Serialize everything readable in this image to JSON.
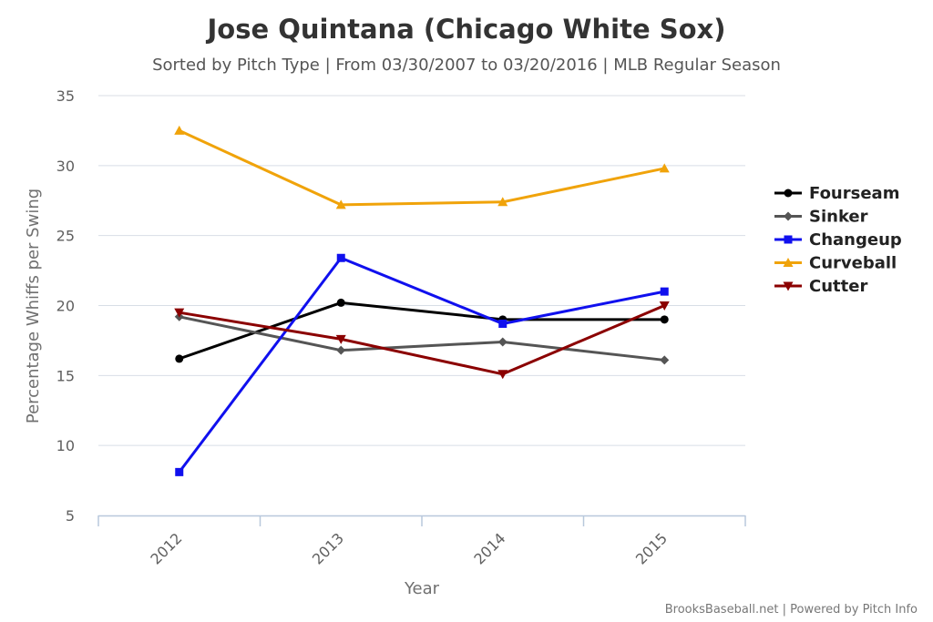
{
  "chart_data": {
    "type": "line",
    "title": "Jose Quintana (Chicago White Sox)",
    "subtitle": "Sorted by Pitch Type | From 03/30/2007 to 03/20/2016 | MLB Regular Season",
    "xlabel": "Year",
    "ylabel": "Percentage Whiffs per Swing",
    "categories": [
      "2012",
      "2013",
      "2014",
      "2015"
    ],
    "ylim": [
      5,
      35
    ],
    "yticks": [
      5,
      10,
      15,
      20,
      25,
      30,
      35
    ],
    "grid": "horizontal",
    "legend_position": "right",
    "series": [
      {
        "name": "Fourseam",
        "color": "#000000",
        "marker": "circle",
        "values": [
          16.2,
          20.2,
          19.0,
          19.0
        ]
      },
      {
        "name": "Sinker",
        "color": "#555555",
        "marker": "diamond",
        "values": [
          19.2,
          16.8,
          17.4,
          16.1
        ]
      },
      {
        "name": "Changeup",
        "color": "#1010ee",
        "marker": "square",
        "values": [
          8.1,
          23.4,
          18.7,
          21.0
        ]
      },
      {
        "name": "Curveball",
        "color": "#f0a30a",
        "marker": "triangle",
        "values": [
          32.5,
          27.2,
          27.4,
          29.8
        ]
      },
      {
        "name": "Cutter",
        "color": "#8b0000",
        "marker": "triangle-down",
        "values": [
          19.5,
          17.6,
          15.1,
          20.0
        ]
      }
    ]
  },
  "credits": "BrooksBaseball.net | Powered by Pitch Info"
}
